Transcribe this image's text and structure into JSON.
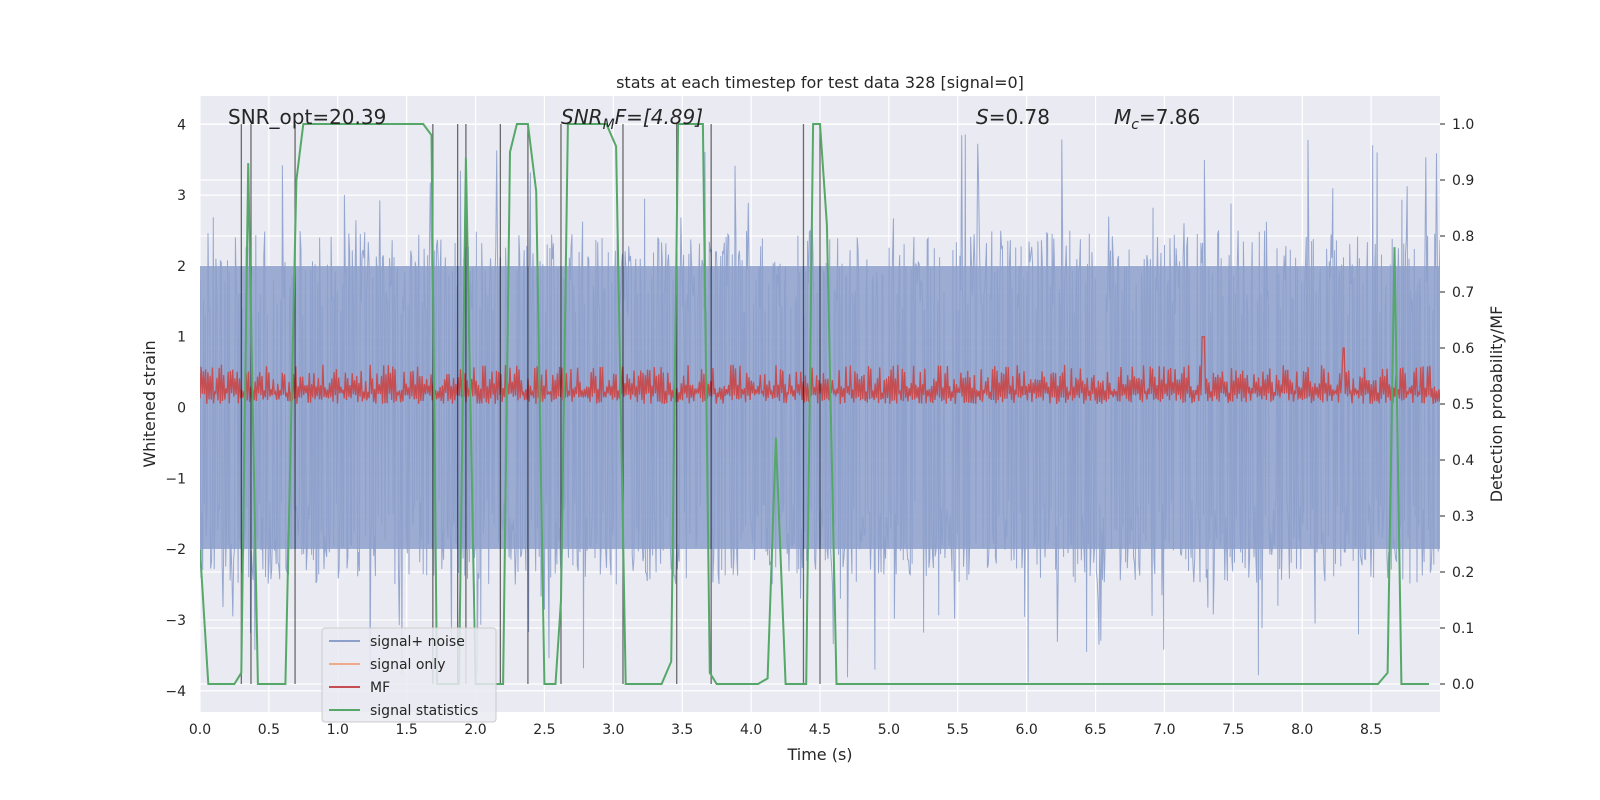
{
  "chart_data": {
    "type": "line",
    "title": "stats at each timestep for test data 328 [signal=0]",
    "xlabel": "Time (s)",
    "ylabel": "Whitened strain",
    "ylabel_right": "Detection probability/MF",
    "xlim": [
      0.0,
      9.0
    ],
    "ylim": [
      -4.3,
      4.4
    ],
    "ylim_right": [
      -0.05,
      1.05
    ],
    "grid": true,
    "xticks": [
      0.0,
      0.5,
      1.0,
      1.5,
      2.0,
      2.5,
      3.0,
      3.5,
      4.0,
      4.5,
      5.0,
      5.5,
      6.0,
      6.5,
      7.0,
      7.5,
      8.0,
      8.5
    ],
    "xtick_labels": [
      "0.0",
      "0.5",
      "1.0",
      "1.5",
      "2.0",
      "2.5",
      "3.0",
      "3.5",
      "4.0",
      "4.5",
      "5.0",
      "5.5",
      "6.0",
      "6.5",
      "7.0",
      "7.5",
      "8.0",
      "8.5"
    ],
    "yticks": [
      -4,
      -3,
      -2,
      -1,
      0,
      1,
      2,
      3,
      4
    ],
    "ytick_labels": [
      "−4",
      "−3",
      "−2",
      "−1",
      "0",
      "1",
      "2",
      "3",
      "4"
    ],
    "yticks_right": [
      0.0,
      0.1,
      0.2,
      0.3,
      0.4,
      0.5,
      0.6,
      0.7,
      0.8,
      0.9,
      1.0
    ],
    "ytick_labels_right": [
      "0.0",
      "0.1",
      "0.2",
      "0.3",
      "0.4",
      "0.5",
      "0.6",
      "0.7",
      "0.8",
      "0.9",
      "1.0"
    ],
    "annotations": {
      "snr_opt": "SNR_opt=20.39",
      "snr_mf_main": "SNR",
      "snr_mf_sub": "M",
      "snr_mf_rest": "F=[4.89]",
      "s_main": "S",
      "s_rest": "=0.78",
      "mc_main": "M",
      "mc_sub": "c",
      "mc_rest": "=7.86"
    },
    "legend": {
      "position": "lower-left",
      "entries": [
        {
          "label": "signal+ noise",
          "color": "#8da0cb"
        },
        {
          "label": "signal only",
          "color": "#f0a98a"
        },
        {
          "label": "MF",
          "color": "#c44e52"
        },
        {
          "label": "signal statistics",
          "color": "#55a868"
        }
      ]
    },
    "series": [
      {
        "name": "signal+ noise",
        "axis": "left",
        "style": "dense noise band",
        "color": "#8da0cb",
        "typical_envelope": [
          -2.0,
          2.0
        ],
        "peak_range": [
          -3.9,
          3.9
        ]
      },
      {
        "name": "MF",
        "axis": "right",
        "style": "dense noise band",
        "color": "#c44e52",
        "baseline": 0.5,
        "typical_top": 0.55,
        "peaks": [
          [
            7.28,
            0.62
          ],
          [
            8.3,
            0.6
          ]
        ]
      },
      {
        "name": "signal statistics",
        "axis": "right",
        "color": "#55a868",
        "x": [
          0.0,
          0.06,
          0.25,
          0.3,
          0.35,
          0.42,
          0.62,
          0.7,
          0.75,
          1.62,
          1.68,
          1.72,
          1.78,
          1.84,
          1.88,
          1.93,
          2.0,
          2.05,
          2.2,
          2.25,
          2.3,
          2.35,
          2.38,
          2.44,
          2.5,
          2.58,
          2.62,
          2.67,
          2.95,
          3.02,
          3.09,
          3.15,
          3.35,
          3.42,
          3.47,
          3.65,
          3.7,
          3.75,
          3.85,
          4.05,
          4.12,
          4.18,
          4.25,
          4.4,
          4.45,
          4.5,
          4.55,
          4.62,
          8.5,
          8.55,
          8.62,
          8.67,
          8.72,
          8.83,
          8.92
        ],
        "values": [
          0.24,
          0.0,
          0.0,
          0.02,
          0.93,
          0.0,
          0.0,
          0.9,
          1.0,
          1.0,
          0.98,
          0.0,
          0.0,
          0.0,
          0.0,
          0.94,
          0.0,
          0.0,
          0.0,
          0.95,
          1.0,
          1.0,
          1.0,
          0.88,
          0.0,
          0.0,
          0.15,
          1.0,
          1.0,
          0.96,
          0.0,
          0.0,
          0.0,
          0.04,
          1.0,
          1.0,
          0.02,
          0.0,
          0.0,
          0.0,
          0.01,
          0.44,
          0.0,
          0.0,
          1.0,
          1.0,
          0.82,
          0.0,
          0.0,
          0.0,
          0.02,
          0.78,
          0.0,
          0.0,
          0.0
        ]
      }
    ],
    "vertical_markers": {
      "color": "#000000",
      "x": [
        0.3,
        0.37,
        0.69,
        1.69,
        1.87,
        1.93,
        2.18,
        2.38,
        2.62,
        3.07,
        3.46,
        3.71,
        4.38,
        4.5
      ]
    }
  }
}
